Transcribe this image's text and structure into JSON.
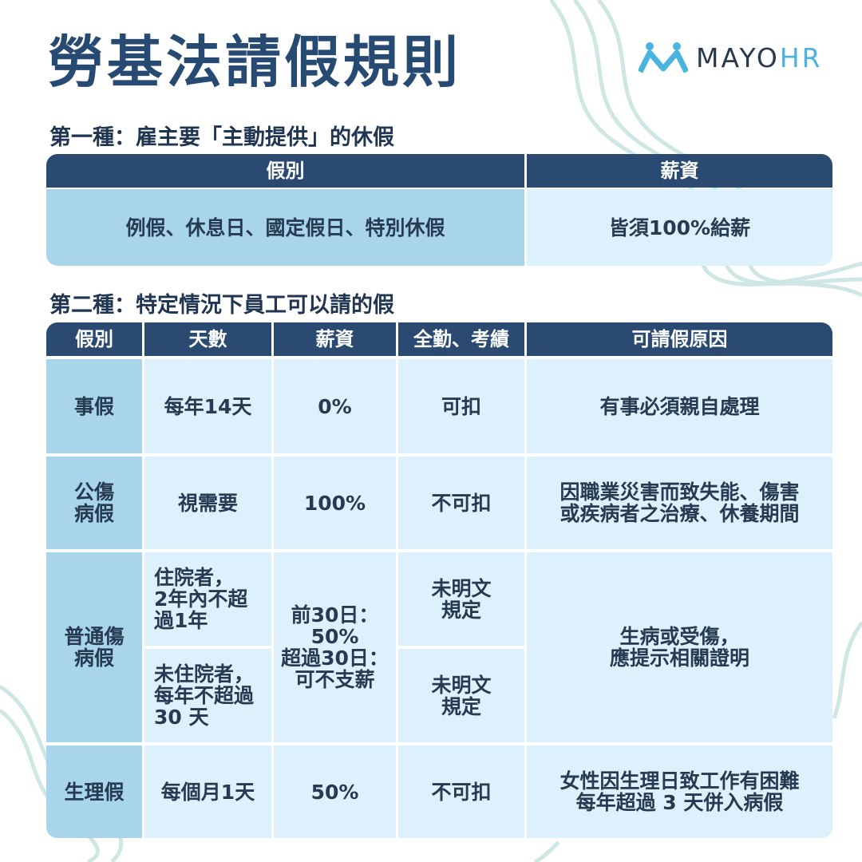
{
  "header": {
    "title": "勞基法請假規則",
    "logo_main": "MAYO",
    "logo_accent": "HR"
  },
  "section1": {
    "heading": "第一種：雇主要「主動提供」的休假",
    "table": {
      "headers": [
        "假別",
        "薪資"
      ],
      "rows": [
        [
          [
            "例假、休息日、國定假日、特別休假"
          ],
          [
            "皆須100%給薪"
          ]
        ]
      ]
    }
  },
  "section2": {
    "heading": "第二種：特定情況下員工可以請的假",
    "table": {
      "headers": [
        "假別",
        "天數",
        "薪資",
        "全勤、考績",
        "可請假原因"
      ],
      "rows": [
        [
          [
            "事假"
          ],
          [
            "每年14天"
          ],
          [
            "0%"
          ],
          [
            "可扣"
          ],
          [
            "有事必須親自處理"
          ]
        ],
        [
          [
            "公傷",
            "病假"
          ],
          [
            "視需要"
          ],
          [
            "100%"
          ],
          [
            "不可扣"
          ],
          [
            "因職業災害而致失能、傷害",
            "或疾病者之治療、休養期間"
          ]
        ],
        [
          [
            "普通傷",
            "病假"
          ],
          [
            [
              "住院者，",
              "2年內不超",
              "過1年"
            ],
            [
              "未住院者，",
              "每年不超過",
              "30 天"
            ]
          ],
          [
            "前30日：",
            "50%",
            "超過30日：",
            "可不支薪"
          ],
          [
            [
              "未明文",
              "規定"
            ],
            [
              "未明文",
              "規定"
            ]
          ],
          [
            "生病或受傷，",
            "應提示相關證明"
          ]
        ],
        [
          [
            "生理假"
          ],
          [
            "每個月1天"
          ],
          [
            "50%"
          ],
          [
            "不可扣"
          ],
          [
            "女性因生理日致工作有困難",
            "每年超過 3 天併入病假"
          ]
        ]
      ]
    }
  }
}
